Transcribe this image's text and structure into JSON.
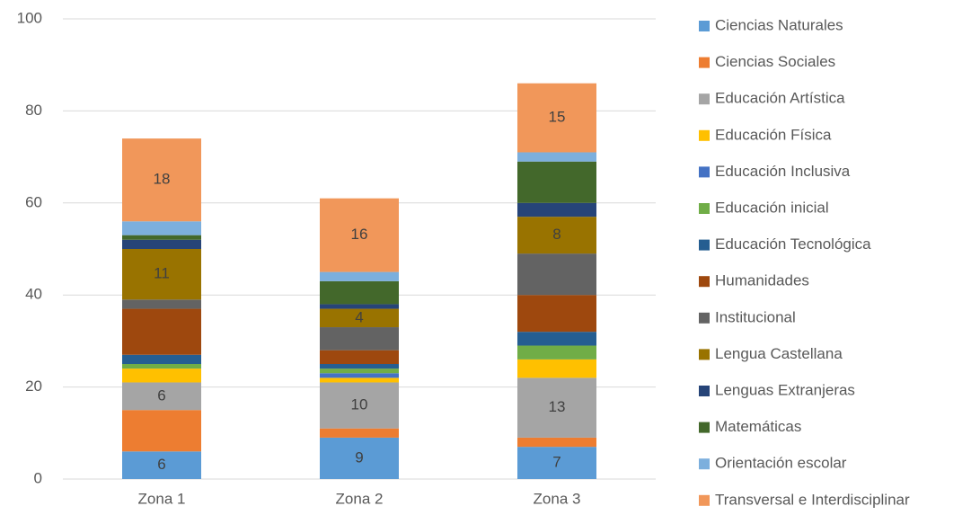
{
  "chart_data": {
    "type": "stacked_bar",
    "categories": [
      "Zona 1",
      "Zona 2",
      "Zona 3"
    ],
    "ylim": [
      0,
      100
    ],
    "yticks": [
      0,
      20,
      40,
      60,
      80,
      100
    ],
    "grid": true,
    "legend": "right",
    "series": [
      {
        "name": "Ciencias Naturales",
        "color": "#5b9bd5",
        "values": [
          6,
          9,
          7
        ],
        "data_labels": true
      },
      {
        "name": "Ciencias Sociales",
        "color": "#ed7d31",
        "values": [
          9,
          2,
          2
        ]
      },
      {
        "name": "Educación Artística",
        "color": "#a5a5a5",
        "values": [
          6,
          10,
          13
        ],
        "data_labels": true
      },
      {
        "name": "Educación Física",
        "color": "#ffc000",
        "values": [
          3,
          1,
          4
        ]
      },
      {
        "name": "Educación Inclusiva",
        "color": "#4472c4",
        "values": [
          0,
          1,
          0
        ]
      },
      {
        "name": "Educación inicial",
        "color": "#70ad47",
        "values": [
          1,
          1,
          3
        ]
      },
      {
        "name": "Educación Tecnológica",
        "color": "#255e91",
        "values": [
          2,
          1,
          3
        ]
      },
      {
        "name": "Humanidades",
        "color": "#9e480e",
        "values": [
          10,
          3,
          8
        ]
      },
      {
        "name": "Institucional",
        "color": "#636363",
        "values": [
          2,
          5,
          9
        ]
      },
      {
        "name": "Lengua Castellana",
        "color": "#997300",
        "values": [
          11,
          4,
          8
        ],
        "data_labels": true
      },
      {
        "name": "Lenguas Extranjeras",
        "color": "#264478",
        "values": [
          2,
          1,
          3
        ]
      },
      {
        "name": "Matemáticas",
        "color": "#43682b",
        "values": [
          1,
          5,
          9
        ]
      },
      {
        "name": "Orientación escolar",
        "color": "#7cafdd",
        "values": [
          3,
          2,
          2
        ]
      },
      {
        "name": "Transversal e Interdisciplinar",
        "color": "#f1975a",
        "values": [
          18,
          16,
          15
        ],
        "data_labels": true
      }
    ]
  }
}
